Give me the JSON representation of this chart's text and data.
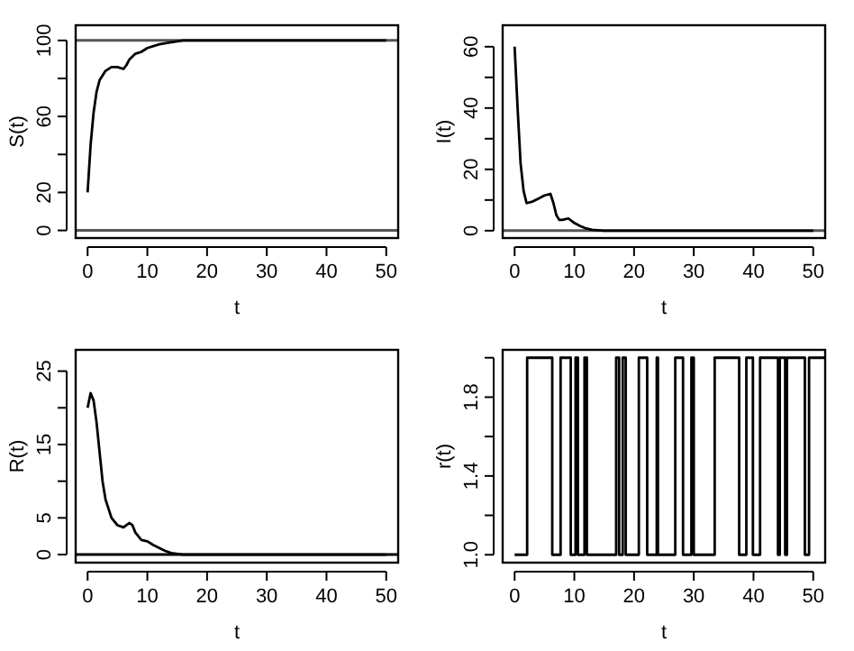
{
  "chart_data": [
    {
      "type": "line",
      "xlabel": "t",
      "ylabel": "S(t)",
      "xlim": [
        -2,
        52
      ],
      "ylim": [
        -4,
        108
      ],
      "xticks": [
        0,
        10,
        20,
        30,
        40,
        50
      ],
      "yticks": [
        0,
        20,
        {
          "value": 40,
          "label": null
        },
        60,
        {
          "value": 80,
          "label": null
        },
        100
      ],
      "grid": false,
      "ref_lines": [
        {
          "axis": "y",
          "value": 0,
          "color": "#555555"
        },
        {
          "axis": "y",
          "value": 100,
          "color": "#555555"
        }
      ],
      "series": [
        {
          "color": "#000000",
          "x": [
            0,
            0.5,
            1,
            1.5,
            2,
            3,
            4,
            5,
            6,
            6.5,
            7,
            8,
            9,
            10,
            12,
            14,
            16,
            20,
            30,
            40,
            50
          ],
          "values": [
            20,
            45,
            62,
            73,
            79,
            84,
            86,
            86,
            85,
            87,
            90,
            93,
            94,
            96,
            98,
            99,
            100,
            100,
            100,
            100,
            100
          ]
        }
      ]
    },
    {
      "type": "line",
      "xlabel": "t",
      "ylabel": "I(t)",
      "xlim": [
        -2,
        52
      ],
      "ylim": [
        -2.4,
        67
      ],
      "xticks": [
        0,
        10,
        20,
        30,
        40,
        50
      ],
      "yticks": [
        0,
        {
          "value": 10,
          "label": null
        },
        20,
        {
          "value": 30,
          "label": null
        },
        40,
        {
          "value": 50,
          "label": null
        },
        60
      ],
      "grid": false,
      "ref_lines": [
        {
          "axis": "y",
          "value": 0,
          "color": "#555555"
        }
      ],
      "series": [
        {
          "color": "#000000",
          "x": [
            0,
            0.5,
            1,
            1.5,
            2,
            3,
            4,
            5,
            6,
            6.5,
            7,
            7.5,
            8,
            9,
            10,
            11,
            12,
            13,
            15,
            20,
            30,
            40,
            50
          ],
          "values": [
            60,
            40,
            22,
            13,
            9,
            9.5,
            10.5,
            11.5,
            12,
            9,
            5,
            3.5,
            3.5,
            4,
            2.5,
            1.5,
            0.7,
            0.3,
            0,
            0,
            0,
            0,
            0
          ]
        }
      ]
    },
    {
      "type": "line",
      "xlabel": "t",
      "ylabel": "R(t)",
      "xlim": [
        -2,
        52
      ],
      "ylim": [
        -1.1,
        27.9
      ],
      "xticks": [
        0,
        10,
        20,
        30,
        40,
        50
      ],
      "yticks": [
        0,
        5,
        {
          "value": 10,
          "label": null
        },
        15,
        {
          "value": 20,
          "label": null
        },
        25
      ],
      "grid": false,
      "ref_lines": [
        {
          "axis": "y",
          "value": 0,
          "color": "#000000"
        }
      ],
      "series": [
        {
          "color": "#000000",
          "x": [
            0,
            0.5,
            1,
            1.5,
            2,
            2.5,
            3,
            4,
            5,
            6,
            6.5,
            7,
            7.5,
            8,
            9,
            10,
            11,
            12,
            13,
            14,
            16,
            20,
            30,
            40,
            50
          ],
          "values": [
            20,
            22,
            21,
            18,
            14,
            10,
            7.5,
            5,
            4,
            3.7,
            4,
            4.3,
            4,
            3,
            2,
            1.8,
            1.3,
            0.9,
            0.5,
            0.2,
            0,
            0,
            0,
            0,
            0
          ]
        }
      ]
    },
    {
      "type": "step",
      "xlabel": "t",
      "ylabel": "r(t)",
      "xlim": [
        -2,
        52
      ],
      "ylim": [
        0.96,
        2.04
      ],
      "xticks": [
        0,
        10,
        20,
        30,
        40,
        50
      ],
      "yticks": [
        {
          "value": 1,
          "label": "1.0"
        },
        {
          "value": 1.2,
          "label": null
        },
        {
          "value": 1.4,
          "label": "1.4"
        },
        {
          "value": 1.6,
          "label": null
        },
        {
          "value": 1.8,
          "label": "1.8"
        },
        {
          "value": 2,
          "label": null
        }
      ],
      "grid": false,
      "series": [
        {
          "color": "#000000",
          "x": [
            0,
            2.1,
            6.3,
            7.7,
            9.4,
            10.2,
            10.6,
            11.7,
            12.1,
            17.0,
            17.5,
            18.1,
            18.6,
            20.8,
            22.2,
            23.8,
            24.0,
            26.9,
            28.2,
            29.6,
            30.0,
            33.5,
            37.6,
            38.8,
            39.9,
            41.1,
            44.1,
            44.4,
            45.3,
            45.6,
            48.6,
            49.3,
            52
          ],
          "values": [
            1,
            2,
            1,
            2,
            1,
            2,
            1,
            2,
            1,
            2,
            1,
            2,
            1,
            2,
            1,
            2,
            1,
            2,
            1,
            2,
            1,
            2,
            1,
            2,
            1,
            2,
            1,
            2,
            1,
            2,
            1,
            2,
            2
          ]
        }
      ]
    }
  ]
}
